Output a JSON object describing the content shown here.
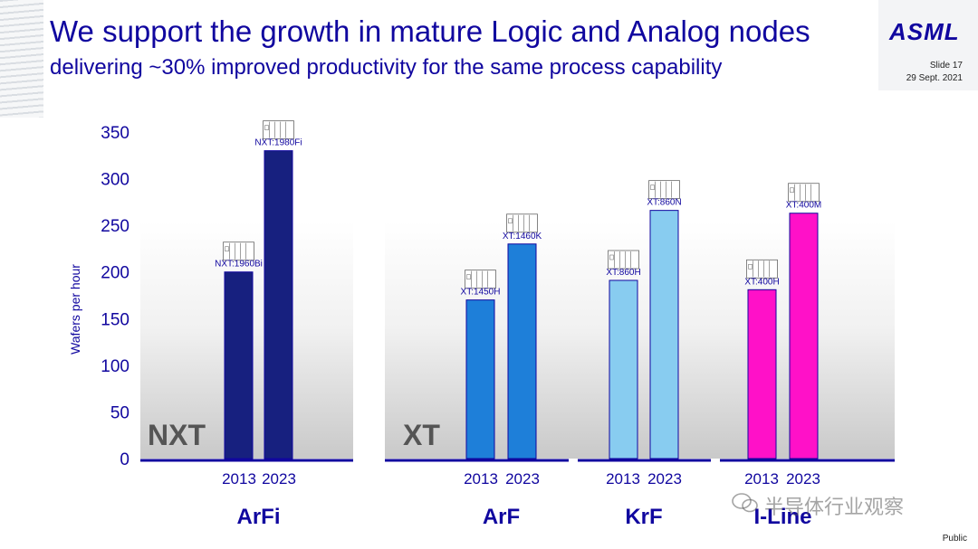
{
  "header": {
    "title": "We support the growth in mature Logic and Analog nodes",
    "subtitle": "delivering ~30% improved productivity for the same process capability",
    "logo": "ASML",
    "slide": "Slide 17",
    "date": "29 Sept. 2021"
  },
  "footer": {
    "classification": "Public",
    "watermark": "半导体行业观察"
  },
  "colors": {
    "brand": "#10069f",
    "ArFi": "#17207f",
    "ArF": "#1e7fd9",
    "KrF": "#88ccf0",
    "I-Line": "#ff11c8"
  },
  "chart_data": {
    "type": "bar",
    "ylabel": "Wafers per hour",
    "ylim": [
      0,
      350
    ],
    "yticks": [
      0,
      50,
      100,
      150,
      200,
      250,
      300,
      350
    ],
    "panels": [
      "NXT",
      "XT"
    ],
    "groups": [
      {
        "name": "ArFi",
        "panel": "NXT",
        "categories": [
          "2013",
          "2023"
        ],
        "values": [
          200,
          330
        ],
        "labels": [
          "NXT:1960Bi",
          "NXT:1980Fi"
        ]
      },
      {
        "name": "ArF",
        "panel": "XT",
        "categories": [
          "2013",
          "2023"
        ],
        "values": [
          170,
          230
        ],
        "labels": [
          "XT:1450H",
          "XT:1460K"
        ]
      },
      {
        "name": "KrF",
        "panel": "XT",
        "categories": [
          "2013",
          "2023"
        ],
        "values": [
          191,
          266
        ],
        "labels": [
          "XT:860H",
          "XT:860N"
        ]
      },
      {
        "name": "I-Line",
        "panel": "XT",
        "categories": [
          "2013",
          "2023"
        ],
        "values": [
          181,
          263
        ],
        "labels": [
          "XT:400H",
          "XT:400M"
        ]
      }
    ]
  }
}
